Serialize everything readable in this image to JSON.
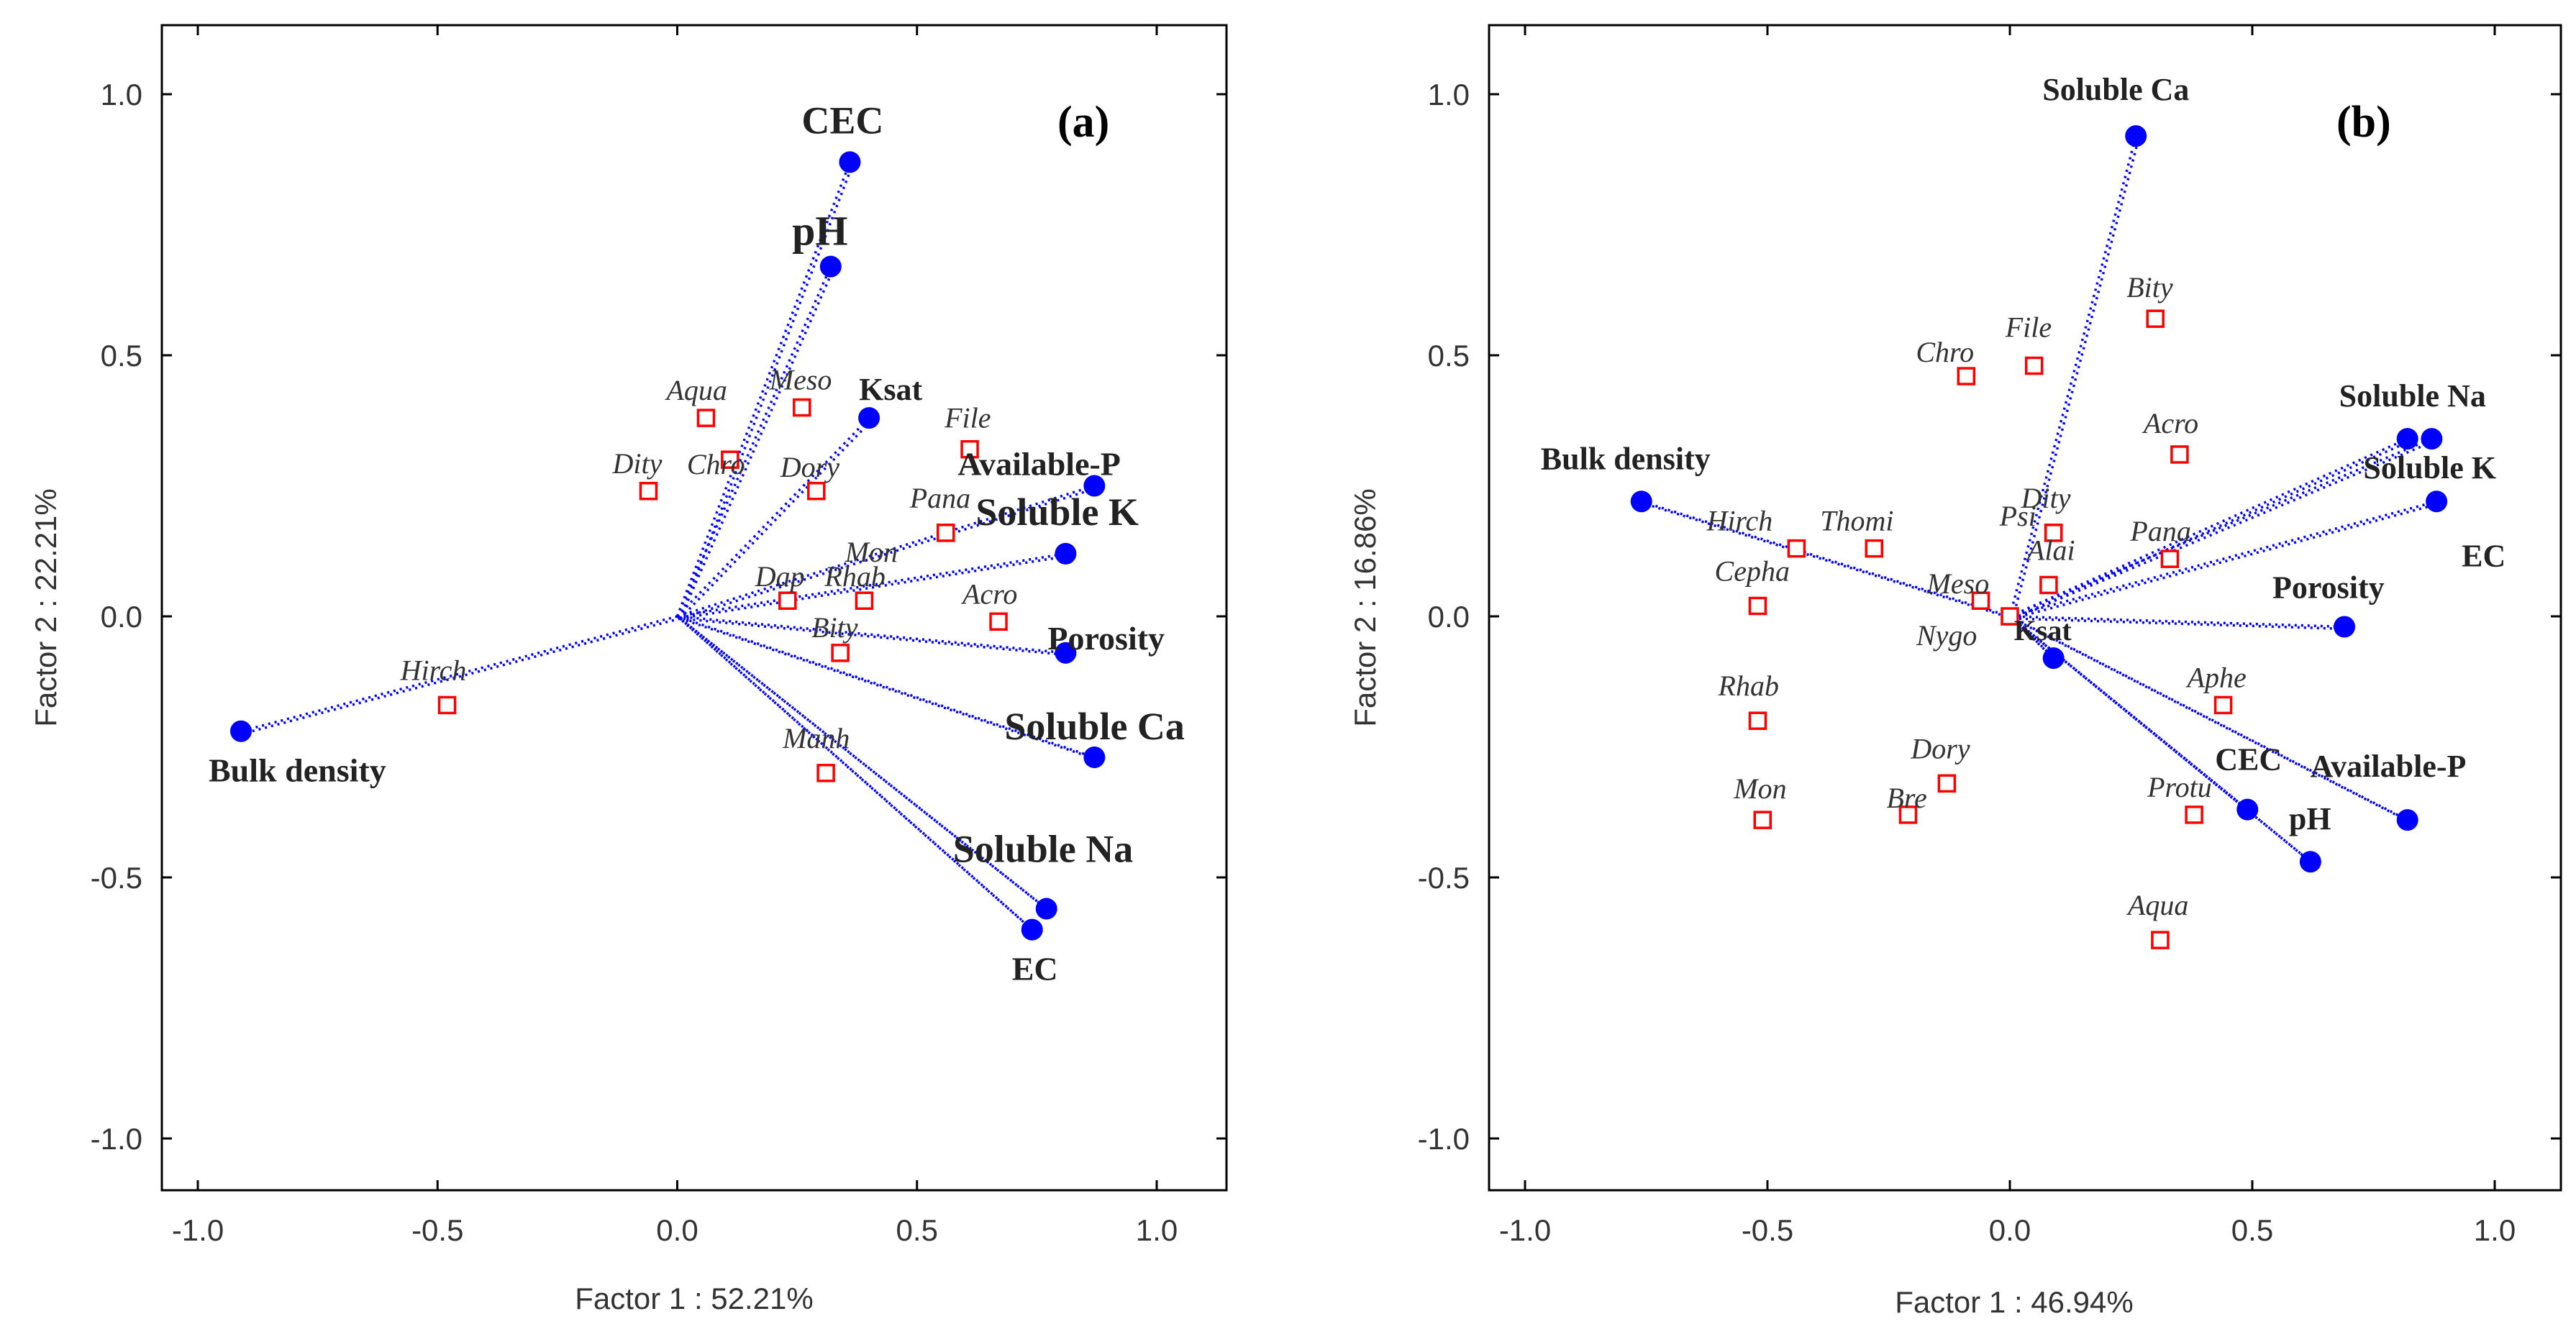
{
  "chart_data": [
    {
      "type": "scatter",
      "panel_label": "(a)",
      "xlabel": "Factor 1 : 52.21%",
      "ylabel": "Factor 2 : 22.21%",
      "xlim": [
        -1.1,
        1.1
      ],
      "ylim": [
        -1.1,
        1.1
      ],
      "xticks": [
        "-1.0",
        "-0.5",
        "0.0",
        "0.5",
        "1.0"
      ],
      "yticks": [
        "1.0",
        "0.5",
        "0.0",
        "-0.5",
        "-1.0"
      ],
      "xtick_values": [
        -1.0,
        -0.5,
        0.0,
        0.5,
        1.0
      ],
      "ytick_values": [
        1.0,
        0.5,
        0.0,
        -0.5,
        -1.0
      ],
      "line_color": "#0000ff",
      "point_color": "#0000ff",
      "case_color": "#ff0000",
      "variables": [
        {
          "name": "CEC",
          "x": 0.36,
          "y": 0.87
        },
        {
          "name": "pH",
          "x": 0.32,
          "y": 0.67
        },
        {
          "name": "Ksat",
          "x": 0.4,
          "y": 0.38
        },
        {
          "name": "Available-P",
          "x": 0.87,
          "y": 0.25
        },
        {
          "name": "Soluble K",
          "x": 0.81,
          "y": 0.12
        },
        {
          "name": "Porosity",
          "x": 0.81,
          "y": -0.07
        },
        {
          "name": "Soluble Ca",
          "x": 0.87,
          "y": -0.27
        },
        {
          "name": "Soluble Na",
          "x": 0.77,
          "y": -0.56
        },
        {
          "name": "EC",
          "x": 0.74,
          "y": -0.6
        },
        {
          "name": "Bulk density",
          "x": -0.91,
          "y": -0.22
        }
      ],
      "cases": [
        {
          "name": "Aqua",
          "x": 0.06,
          "y": 0.38
        },
        {
          "name": "Meso",
          "x": 0.26,
          "y": 0.4
        },
        {
          "name": "Chro",
          "x": 0.11,
          "y": 0.3
        },
        {
          "name": "Dity",
          "x": -0.06,
          "y": 0.24
        },
        {
          "name": "Dory",
          "x": 0.29,
          "y": 0.24
        },
        {
          "name": "File",
          "x": 0.61,
          "y": 0.32
        },
        {
          "name": "Mon",
          "x": 0.56,
          "y": 0.16
        },
        {
          "name": "Pana",
          "x": 0.56,
          "y": 0.16
        },
        {
          "name": "Dap",
          "x": 0.23,
          "y": 0.03
        },
        {
          "name": "Rhab",
          "x": 0.39,
          "y": 0.03
        },
        {
          "name": "Bity",
          "x": 0.34,
          "y": -0.07
        },
        {
          "name": "Acro",
          "x": 0.67,
          "y": -0.01
        },
        {
          "name": "Hirch",
          "x": -0.48,
          "y": -0.17
        },
        {
          "name": "Manh",
          "x": 0.31,
          "y": -0.3
        }
      ]
    },
    {
      "type": "scatter",
      "panel_label": "(b)",
      "xlabel": "Factor 1 : 46.94%",
      "ylabel": "Factor 2 : 16.86%",
      "xlim": [
        -1.1,
        1.1
      ],
      "ylim": [
        -1.1,
        1.1
      ],
      "xticks": [
        "-1.0",
        "-0.5",
        "0.0",
        "0.5",
        "1.0"
      ],
      "yticks": [
        "1.0",
        "0.5",
        "0.0",
        "-0.5",
        "-1.0"
      ],
      "xtick_values": [
        -1.0,
        -0.5,
        0.0,
        0.5,
        1.0
      ],
      "ytick_values": [
        1.0,
        0.5,
        0.0,
        -0.5,
        -1.0
      ],
      "line_color": "#0000ff",
      "point_color": "#0000ff",
      "case_color": "#ff0000",
      "variables": [
        {
          "name": "Soluble Ca",
          "x": 0.26,
          "y": 0.92
        },
        {
          "name": "Soluble Na",
          "x": 0.82,
          "y": 0.34
        },
        {
          "name": "Soluble K",
          "x": 0.87,
          "y": 0.34
        },
        {
          "name": "EC",
          "x": 0.88,
          "y": 0.22
        },
        {
          "name": "Porosity",
          "x": 0.69,
          "y": -0.02
        },
        {
          "name": "Ksat",
          "x": 0.09,
          "y": -0.08
        },
        {
          "name": "Available-P",
          "x": 0.82,
          "y": -0.39
        },
        {
          "name": "CEC",
          "x": 0.49,
          "y": -0.37
        },
        {
          "name": "pH",
          "x": 0.62,
          "y": -0.47
        },
        {
          "name": "Bulk density",
          "x": -0.76,
          "y": 0.22
        }
      ],
      "cases": [
        {
          "name": "Bity",
          "x": 0.3,
          "y": 0.57
        },
        {
          "name": "Chro",
          "x": -0.09,
          "y": 0.46
        },
        {
          "name": "File",
          "x": 0.05,
          "y": 0.48
        },
        {
          "name": "Acro",
          "x": 0.35,
          "y": 0.31
        },
        {
          "name": "Hirch",
          "x": -0.44,
          "y": 0.13
        },
        {
          "name": "Thomi",
          "x": -0.28,
          "y": 0.13
        },
        {
          "name": "Dity",
          "x": 0.09,
          "y": 0.16
        },
        {
          "name": "Psi",
          "x": 0.09,
          "y": 0.16
        },
        {
          "name": "Alai",
          "x": 0.08,
          "y": 0.06
        },
        {
          "name": "Meso",
          "x": -0.06,
          "y": 0.03
        },
        {
          "name": "Pana",
          "x": 0.33,
          "y": 0.11
        },
        {
          "name": "Cepha",
          "x": -0.52,
          "y": 0.02
        },
        {
          "name": "Nygo",
          "x": 0.0,
          "y": 0.0
        },
        {
          "name": "Aphe",
          "x": 0.44,
          "y": -0.17
        },
        {
          "name": "Rhab",
          "x": -0.52,
          "y": -0.2
        },
        {
          "name": "Dory",
          "x": -0.13,
          "y": -0.32
        },
        {
          "name": "Bre",
          "x": -0.21,
          "y": -0.38
        },
        {
          "name": "Mon",
          "x": -0.51,
          "y": -0.39
        },
        {
          "name": "Protu",
          "x": 0.38,
          "y": -0.38
        },
        {
          "name": "Aqua",
          "x": 0.31,
          "y": -0.62
        }
      ]
    }
  ]
}
